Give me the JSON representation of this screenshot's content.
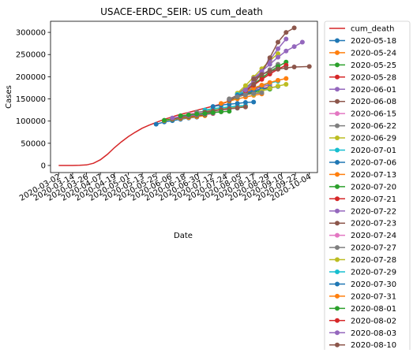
{
  "chart_data": {
    "type": "line",
    "title": "USACE-ERDC_SEIR: US cum_death",
    "xlabel": "Date",
    "ylabel": "Cases",
    "x_axis": "date",
    "xlim": [
      "2020-02-24",
      "2020-10-11"
    ],
    "ylim": [
      -16000,
      325000
    ],
    "y_ticks": [
      0,
      50000,
      100000,
      150000,
      200000,
      250000,
      300000
    ],
    "y_tick_labels": [
      "0",
      "50000",
      "100000",
      "150000",
      "200000",
      "250000",
      "300000"
    ],
    "x_ticks": [
      "2020-03-02",
      "2020-03-14",
      "2020-03-26",
      "2020-04-07",
      "2020-04-19",
      "2020-05-01",
      "2020-05-13",
      "2020-05-25",
      "2020-06-06",
      "2020-06-18",
      "2020-06-30",
      "2020-07-12",
      "2020-07-24",
      "2020-08-05",
      "2020-08-17",
      "2020-08-29",
      "2020-09-10",
      "2020-09-22",
      "2020-10-04"
    ],
    "grid": false,
    "legend_position": "outside-right",
    "observed": {
      "name": "cum_death",
      "color": "#d62728",
      "points": [
        [
          "2020-03-02",
          0
        ],
        [
          "2020-03-14",
          50
        ],
        [
          "2020-03-20",
          300
        ],
        [
          "2020-03-26",
          1300
        ],
        [
          "2020-04-01",
          5000
        ],
        [
          "2020-04-07",
          13000
        ],
        [
          "2020-04-13",
          25000
        ],
        [
          "2020-04-19",
          40000
        ],
        [
          "2020-04-25",
          53000
        ],
        [
          "2020-05-01",
          65000
        ],
        [
          "2020-05-07",
          75000
        ],
        [
          "2020-05-13",
          84000
        ],
        [
          "2020-05-19",
          91000
        ],
        [
          "2020-05-25",
          97000
        ],
        [
          "2020-06-01",
          104000
        ],
        [
          "2020-06-06",
          108000
        ],
        [
          "2020-06-12",
          113000
        ],
        [
          "2020-06-18",
          117000
        ],
        [
          "2020-06-24",
          121000
        ],
        [
          "2020-06-30",
          125000
        ],
        [
          "2020-07-06",
          129000
        ],
        [
          "2020-07-12",
          133000
        ],
        [
          "2020-07-18",
          137000
        ],
        [
          "2020-07-24",
          142000
        ],
        [
          "2020-07-30",
          150000
        ],
        [
          "2020-08-05",
          157000
        ],
        [
          "2020-08-10",
          163000
        ]
      ]
    },
    "series": [
      {
        "name": "2020-05-18",
        "color": "#1f77b4",
        "start": "2020-05-25",
        "values": [
          93000,
          98000,
          101000,
          104000,
          107000,
          109000
        ]
      },
      {
        "name": "2020-05-24",
        "color": "#ff7f0e",
        "start": "2020-06-01",
        "values": [
          101000,
          104000,
          106000,
          108000,
          110000,
          112000
        ]
      },
      {
        "name": "2020-05-25",
        "color": "#2ca02c",
        "start": "2020-06-01",
        "values": [
          102000,
          105000,
          108000,
          110000,
          112000,
          114000
        ]
      },
      {
        "name": "2020-05-28",
        "color": "#d62728",
        "start": "2020-06-08",
        "values": [
          106000,
          109000,
          111000,
          113000,
          115000,
          117000
        ]
      },
      {
        "name": "2020-06-01",
        "color": "#9467bd",
        "start": "2020-06-08",
        "values": [
          107000,
          110000,
          112000,
          114000,
          116000,
          118000
        ]
      },
      {
        "name": "2020-06-08",
        "color": "#8c564b",
        "start": "2020-06-15",
        "values": [
          111000,
          114000,
          116000,
          118000,
          120000,
          121000
        ]
      },
      {
        "name": "2020-06-15",
        "color": "#e377c2",
        "start": "2020-06-22",
        "values": [
          116000,
          119000,
          121000,
          123000,
          125000,
          126000
        ]
      },
      {
        "name": "2020-06-22",
        "color": "#7f7f7f",
        "start": "2020-06-29",
        "values": [
          120000,
          122000,
          124000,
          126000,
          128000,
          129000
        ]
      },
      {
        "name": "2020-06-29",
        "color": "#bcbd22",
        "start": "2020-07-06",
        "values": [
          124000,
          127000,
          129000,
          131000,
          133000,
          134000
        ]
      },
      {
        "name": "2020-07-01",
        "color": "#17becf",
        "start": "2020-07-06",
        "values": [
          125000,
          128000,
          130000,
          132000,
          134000,
          135000
        ]
      },
      {
        "name": "2020-07-06",
        "color": "#1f77b4",
        "start": "2020-07-13",
        "values": [
          133000,
          136000,
          138000,
          140000,
          142000,
          143000
        ]
      },
      {
        "name": "2020-07-13",
        "color": "#ff7f0e",
        "start": "2020-07-20",
        "values": [
          140000,
          145000,
          150000,
          154000,
          158000,
          161000
        ]
      },
      {
        "name": "2020-07-20",
        "color": "#2ca02c",
        "start": "2020-07-27",
        "values": [
          147000,
          154000,
          160000,
          165000,
          169000,
          172000
        ]
      },
      {
        "name": "2020-07-21",
        "color": "#d62728",
        "start": "2020-07-27",
        "values": [
          148000,
          155000,
          162000,
          168000,
          173000,
          177000
        ]
      },
      {
        "name": "2020-07-22",
        "color": "#9467bd",
        "start": "2020-07-27",
        "values": [
          149000,
          157000,
          164000,
          171000,
          177000,
          182000
        ]
      },
      {
        "name": "2020-07-23",
        "color": "#8c564b",
        "start": "2020-07-27",
        "values": [
          150000,
          158000,
          166000,
          173000,
          180000,
          186000
        ]
      },
      {
        "name": "2020-07-24",
        "color": "#e377c2",
        "start": "2020-08-03",
        "values": [
          160000,
          172000,
          184000,
          196000,
          207000,
          217000
        ]
      },
      {
        "name": "2020-07-27",
        "color": "#7f7f7f",
        "start": "2020-08-03",
        "values": [
          161000,
          175000,
          190000,
          204000,
          216000,
          228000
        ]
      },
      {
        "name": "2020-07-28",
        "color": "#bcbd22",
        "start": "2020-08-03",
        "values": [
          163000,
          180000,
          199000,
          218000,
          236000,
          252000
        ]
      },
      {
        "name": "2020-07-29",
        "color": "#17becf",
        "start": "2020-08-03",
        "values": [
          160000,
          168000,
          175000,
          181000,
          186000,
          190000
        ]
      },
      {
        "name": "2020-07-30",
        "color": "#1f77b4",
        "start": "2020-08-03",
        "values": [
          158000,
          163000,
          168000,
          172000,
          175000,
          178000
        ]
      },
      {
        "name": "2020-07-31",
        "color": "#ff7f0e",
        "start": "2020-08-10",
        "values": [
          166000,
          174000,
          181000,
          187000,
          192000,
          196000
        ]
      },
      {
        "name": "2020-08-01",
        "color": "#2ca02c",
        "start": "2020-08-10",
        "values": [
          168000,
          183000,
          197000,
          211000,
          223000,
          233000
        ]
      },
      {
        "name": "2020-08-02",
        "color": "#d62728",
        "start": "2020-08-10",
        "values": [
          168000,
          181000,
          194000,
          206000,
          217000,
          226000
        ]
      },
      {
        "name": "2020-08-03",
        "color": "#9467bd",
        "start": "2020-08-10",
        "values": [
          170000,
          189000,
          212000,
          238000,
          263000,
          285000
        ]
      },
      {
        "name": "2020-08-10",
        "color": "#8c564b",
        "start": "2020-08-17",
        "values": [
          183000,
          210000,
          243000,
          278000,
          300000,
          310000
        ]
      }
    ],
    "extra_segments": [
      {
        "color": "#9467bd",
        "points": [
          [
            "2020-08-17",
            196000
          ],
          [
            "2020-08-24",
            212000
          ],
          [
            "2020-08-31",
            228000
          ],
          [
            "2020-09-07",
            244000
          ],
          [
            "2020-09-14",
            258000
          ],
          [
            "2020-09-21",
            268000
          ],
          [
            "2020-09-28",
            278000
          ]
        ]
      },
      {
        "color": "#bcbd22",
        "points": [
          [
            "2020-08-17",
            160000
          ],
          [
            "2020-08-24",
            168000
          ],
          [
            "2020-08-31",
            174000
          ],
          [
            "2020-09-07",
            179000
          ],
          [
            "2020-09-14",
            183000
          ]
        ]
      },
      {
        "color": "#8c564b",
        "points": [
          [
            "2020-08-17",
            195000
          ],
          [
            "2020-08-24",
            205000
          ],
          [
            "2020-08-31",
            212000
          ],
          [
            "2020-09-07",
            217000
          ],
          [
            "2020-09-14",
            220000
          ],
          [
            "2020-09-21",
            222000
          ],
          [
            "2020-10-04",
            223000
          ]
        ]
      },
      {
        "color": "#7f7f7f",
        "points": [
          [
            "2020-07-27",
            150000
          ],
          [
            "2020-08-03",
            155000
          ],
          [
            "2020-08-10",
            159000
          ],
          [
            "2020-08-17",
            162000
          ],
          [
            "2020-08-24",
            164000
          ]
        ]
      },
      {
        "color": "#8c564b",
        "points": [
          [
            "2020-07-06",
            120000
          ],
          [
            "2020-07-13",
            123000
          ],
          [
            "2020-07-20",
            126000
          ],
          [
            "2020-07-27",
            128000
          ],
          [
            "2020-08-03",
            130000
          ],
          [
            "2020-08-10",
            132000
          ]
        ]
      },
      {
        "color": "#2ca02c",
        "points": [
          [
            "2020-06-15",
            112000
          ],
          [
            "2020-06-22",
            114000
          ],
          [
            "2020-06-29",
            116000
          ],
          [
            "2020-07-06",
            117000
          ],
          [
            "2020-07-13",
            119000
          ],
          [
            "2020-07-20",
            121000
          ],
          [
            "2020-07-27",
            122000
          ]
        ]
      }
    ]
  }
}
